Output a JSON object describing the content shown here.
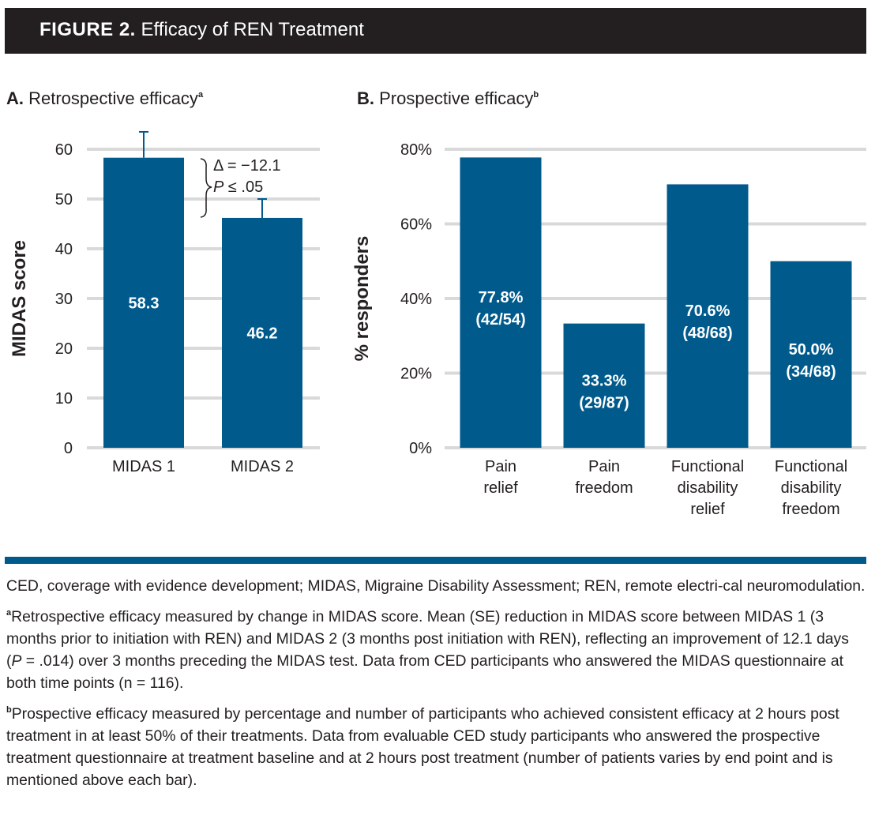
{
  "figure": {
    "label": "FIGURE 2.",
    "title": "Efficacy of REN Treatment"
  },
  "colors": {
    "bar": "#005a8c",
    "grid": "#d9d9da",
    "header_bg": "#231f20",
    "text": "#231f20"
  },
  "panels": {
    "a": {
      "label": "A.",
      "title": "Retrospective efficacy",
      "sup": "a"
    },
    "b": {
      "label": "B.",
      "title": "Prospective efficacy",
      "sup": "b"
    }
  },
  "chart_data": [
    {
      "type": "bar",
      "title": "Retrospective efficacy",
      "ylabel": "MIDAS score",
      "ylim": [
        0,
        60
      ],
      "yticks": [
        "0",
        "10",
        "20",
        "30",
        "40",
        "50",
        "60"
      ],
      "categories": [
        "MIDAS 1",
        "MIDAS 2"
      ],
      "values": [
        58.3,
        46.2
      ],
      "value_labels": [
        "58.3",
        "46.2"
      ],
      "error_upper": [
        63.5,
        50.0
      ],
      "annotation": {
        "delta": "Δ = −12.1",
        "p_prefix": "P",
        "p_rest": " ≤ .05"
      },
      "grid": true
    },
    {
      "type": "bar",
      "title": "Prospective efficacy",
      "ylabel": "% responders",
      "ylim": [
        0,
        80
      ],
      "yticks": [
        "0%",
        "20%",
        "40%",
        "60%",
        "80%"
      ],
      "categories": [
        [
          "Pain",
          "relief"
        ],
        [
          "Pain",
          "freedom"
        ],
        [
          "Functional",
          "disability",
          "relief"
        ],
        [
          "Functional",
          "disability",
          "freedom"
        ]
      ],
      "values": [
        77.8,
        33.3,
        70.6,
        50.0
      ],
      "value_labels": [
        [
          "77.8%",
          "(42/54)"
        ],
        [
          "33.3%",
          "(29/87)"
        ],
        [
          "70.6%",
          "(48/68)"
        ],
        [
          "50.0%",
          "(34/68)"
        ]
      ],
      "grid": true
    }
  ],
  "footnotes": {
    "abbrev": "CED, coverage with evidence development; MIDAS, Migraine Disability Assessment; REN, remote electri-cal neuromodulation.",
    "a_mark": "a",
    "a_before": "Retrospective efficacy measured by change in MIDAS score. Mean (SE) reduction in MIDAS score between MIDAS 1 (3 months prior to initiation with REN) and MIDAS 2 (3 months post initiation with REN), reflecting an improvement of 12.1 days (",
    "a_p": "P",
    "a_after": " = .014) over 3 months preceding the MIDAS test. Data from CED participants who answered the MIDAS questionnaire at both time points (n = 116).",
    "b_mark": "b",
    "b_text": "Prospective efficacy measured by percentage and number of participants who achieved consistent efficacy at 2 hours post treatment in at least 50% of their treatments. Data from evaluable CED study participants who answered the prospective treatment questionnaire at treatment baseline and at 2 hours post treatment (number of patients varies by end point and is mentioned above each bar)."
  }
}
